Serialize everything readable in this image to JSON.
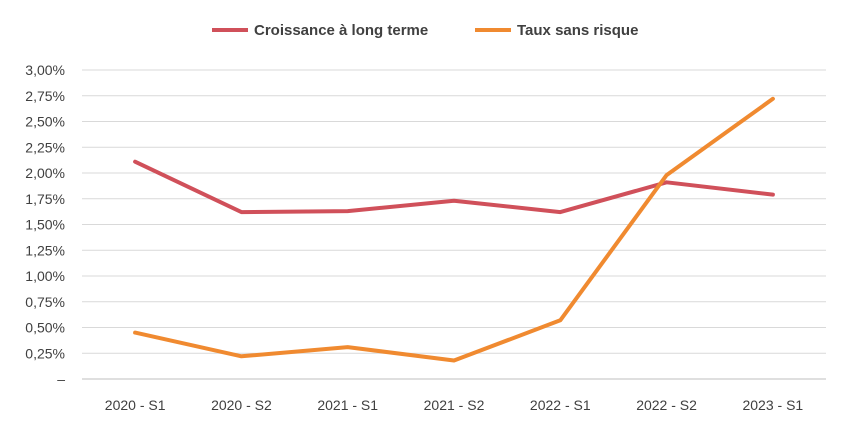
{
  "chart_data": {
    "type": "line",
    "categories": [
      "2020 - S1",
      "2020 - S2",
      "2021 - S1",
      "2021 - S2",
      "2022 - S1",
      "2022 - S2",
      "2023 - S1"
    ],
    "series": [
      {
        "name": "Croissance à long terme",
        "color": "#D0505A",
        "values": [
          2.11,
          1.62,
          1.63,
          1.73,
          1.62,
          1.91,
          1.79
        ]
      },
      {
        "name": "Taux sans risque",
        "color": "#F08A30",
        "values": [
          0.45,
          0.22,
          0.31,
          0.18,
          0.57,
          1.98,
          2.72
        ]
      }
    ],
    "y_ticks": [
      "–",
      "0,25%",
      "0,50%",
      "0,75%",
      "1,00%",
      "1,25%",
      "1,50%",
      "1,75%",
      "2,00%",
      "2,25%",
      "2,50%",
      "2,75%",
      "3,00%"
    ],
    "ylim": [
      0,
      3.0
    ],
    "y_unit": "%",
    "grid": "horizontal",
    "legend_position": "top-center",
    "title": "",
    "xlabel": "",
    "ylabel": ""
  }
}
